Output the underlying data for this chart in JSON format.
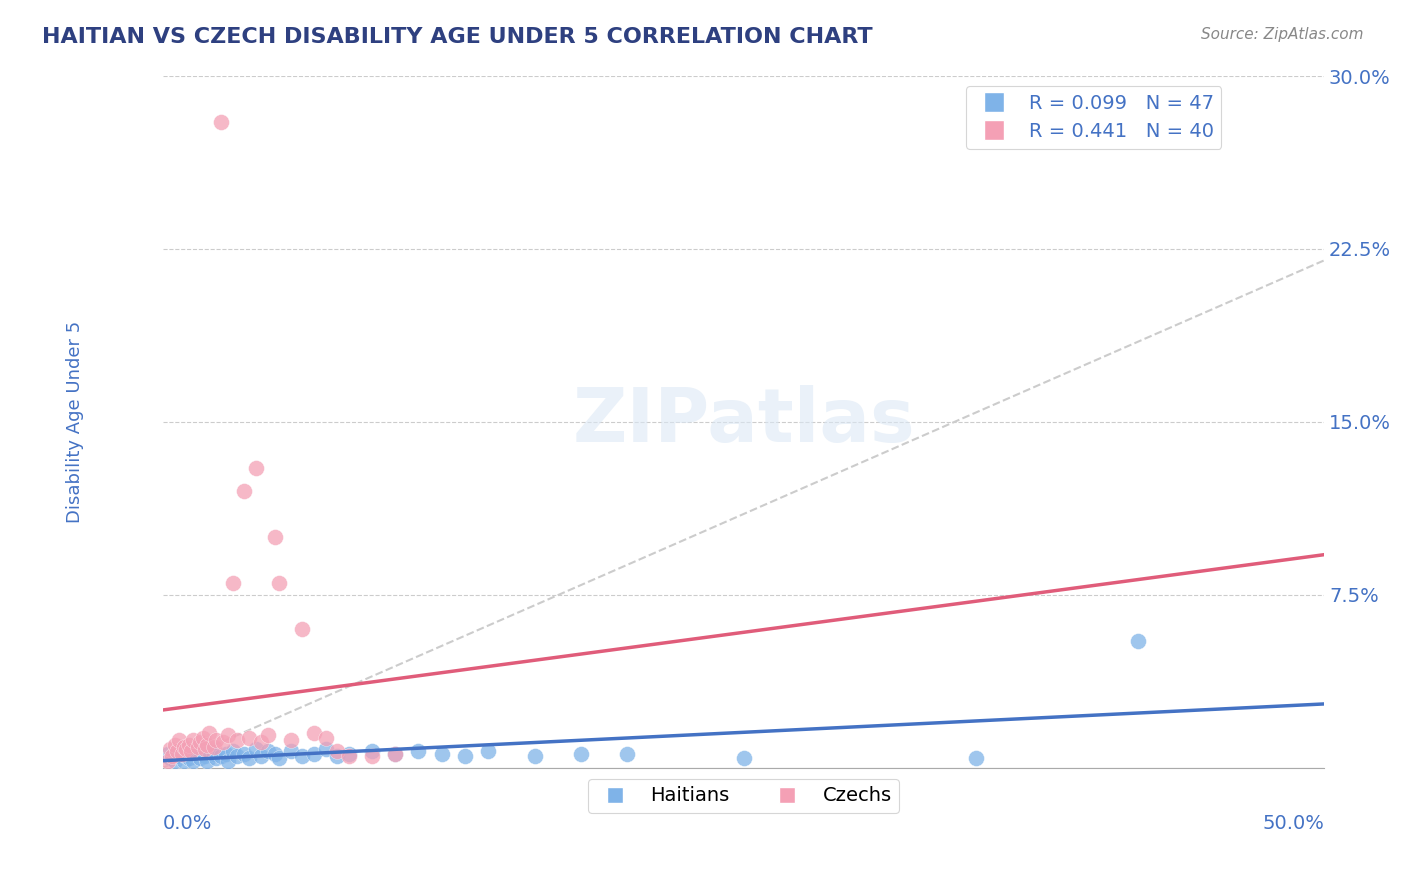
{
  "title": "HAITIAN VS CZECH DISABILITY AGE UNDER 5 CORRELATION CHART",
  "source": "Source: ZipAtlas.com",
  "ylabel": "Disability Age Under 5",
  "xlim": [
    0.0,
    0.5
  ],
  "ylim": [
    0.0,
    0.3
  ],
  "ytick_labels": [
    "",
    "7.5%",
    "15.0%",
    "22.5%",
    "30.0%"
  ],
  "haitian_color": "#7fb3e8",
  "czech_color": "#f4a0b5",
  "haitian_line_color": "#4472c4",
  "czech_line_color": "#e05c7a",
  "watermark": "ZIPatlas",
  "background_color": "#ffffff",
  "grid_color": "#cccccc",
  "title_color": "#2e4080",
  "axis_label_color": "#4472c4",
  "haitian_points": [
    [
      0.002,
      0.006
    ],
    [
      0.003,
      0.004
    ],
    [
      0.005,
      0.003
    ],
    [
      0.006,
      0.005
    ],
    [
      0.008,
      0.007
    ],
    [
      0.009,
      0.003
    ],
    [
      0.01,
      0.005
    ],
    [
      0.011,
      0.004
    ],
    [
      0.012,
      0.006
    ],
    [
      0.013,
      0.003
    ],
    [
      0.015,
      0.008
    ],
    [
      0.016,
      0.004
    ],
    [
      0.018,
      0.005
    ],
    [
      0.019,
      0.003
    ],
    [
      0.02,
      0.007
    ],
    [
      0.022,
      0.006
    ],
    [
      0.023,
      0.004
    ],
    [
      0.025,
      0.005
    ],
    [
      0.027,
      0.006
    ],
    [
      0.028,
      0.003
    ],
    [
      0.03,
      0.007
    ],
    [
      0.032,
      0.005
    ],
    [
      0.035,
      0.006
    ],
    [
      0.037,
      0.004
    ],
    [
      0.04,
      0.008
    ],
    [
      0.042,
      0.005
    ],
    [
      0.045,
      0.007
    ],
    [
      0.048,
      0.006
    ],
    [
      0.05,
      0.004
    ],
    [
      0.055,
      0.007
    ],
    [
      0.06,
      0.005
    ],
    [
      0.065,
      0.006
    ],
    [
      0.07,
      0.008
    ],
    [
      0.075,
      0.005
    ],
    [
      0.08,
      0.006
    ],
    [
      0.09,
      0.007
    ],
    [
      0.1,
      0.006
    ],
    [
      0.11,
      0.007
    ],
    [
      0.12,
      0.006
    ],
    [
      0.13,
      0.005
    ],
    [
      0.14,
      0.007
    ],
    [
      0.16,
      0.005
    ],
    [
      0.18,
      0.006
    ],
    [
      0.2,
      0.006
    ],
    [
      0.25,
      0.004
    ],
    [
      0.35,
      0.004
    ],
    [
      0.42,
      0.055
    ]
  ],
  "czech_points": [
    [
      0.002,
      0.003
    ],
    [
      0.003,
      0.008
    ],
    [
      0.004,
      0.005
    ],
    [
      0.005,
      0.01
    ],
    [
      0.006,
      0.007
    ],
    [
      0.007,
      0.012
    ],
    [
      0.008,
      0.006
    ],
    [
      0.009,
      0.009
    ],
    [
      0.01,
      0.008
    ],
    [
      0.011,
      0.01
    ],
    [
      0.012,
      0.007
    ],
    [
      0.013,
      0.012
    ],
    [
      0.015,
      0.009
    ],
    [
      0.016,
      0.011
    ],
    [
      0.017,
      0.013
    ],
    [
      0.018,
      0.008
    ],
    [
      0.019,
      0.01
    ],
    [
      0.02,
      0.015
    ],
    [
      0.022,
      0.009
    ],
    [
      0.023,
      0.012
    ],
    [
      0.025,
      0.28
    ],
    [
      0.026,
      0.011
    ],
    [
      0.028,
      0.014
    ],
    [
      0.03,
      0.08
    ],
    [
      0.032,
      0.012
    ],
    [
      0.035,
      0.12
    ],
    [
      0.037,
      0.013
    ],
    [
      0.04,
      0.13
    ],
    [
      0.042,
      0.011
    ],
    [
      0.045,
      0.014
    ],
    [
      0.048,
      0.1
    ],
    [
      0.05,
      0.08
    ],
    [
      0.055,
      0.012
    ],
    [
      0.06,
      0.06
    ],
    [
      0.065,
      0.015
    ],
    [
      0.07,
      0.013
    ],
    [
      0.075,
      0.007
    ],
    [
      0.08,
      0.005
    ],
    [
      0.09,
      0.005
    ],
    [
      0.1,
      0.006
    ]
  ]
}
